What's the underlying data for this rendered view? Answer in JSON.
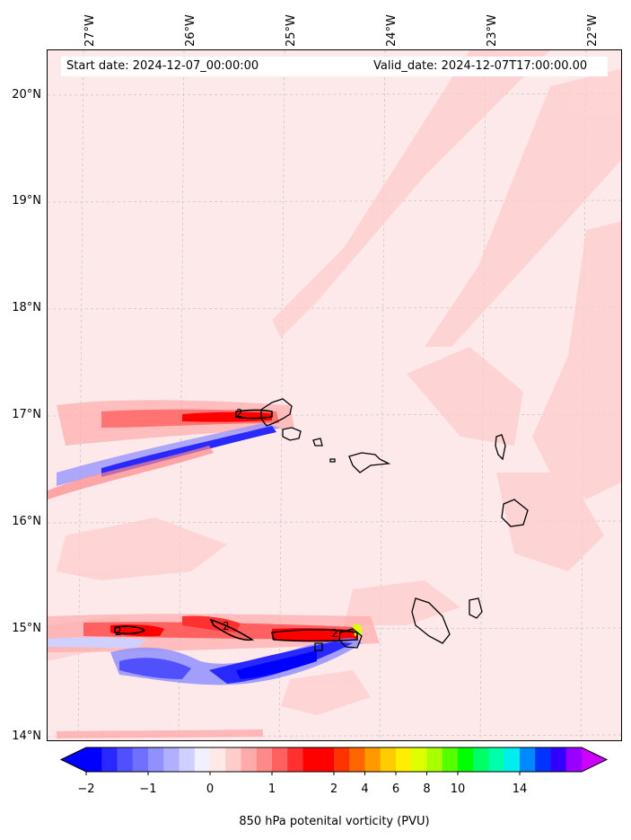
{
  "header": {
    "start_date": "Start date: 2024-12-07_00:00:00",
    "valid_date": "Valid_date: 2024-12-07T17:00:00.00"
  },
  "map": {
    "lon_labels": [
      "27°W",
      "26°W",
      "25°W",
      "24°W",
      "23°W",
      "22°W"
    ],
    "lat_labels": [
      "20°N",
      "19°N",
      "18°N",
      "17°N",
      "16°N",
      "15°N",
      "14°N"
    ],
    "contour_label": "2",
    "background_color": "#fde9ea"
  },
  "colorbar": {
    "tick_labels": [
      "−2",
      "−1",
      "0",
      "1",
      "2",
      "4",
      "6",
      "8",
      "10",
      "14"
    ],
    "label": "850 hPa potenital vorticity (PVU)",
    "colors": [
      "#0000ff",
      "#2828ff",
      "#5050ff",
      "#7070ff",
      "#9090ff",
      "#b0b0ff",
      "#d0d0ff",
      "#f0f0ff",
      "#ffe8e8",
      "#ffcccc",
      "#ffaaaa",
      "#ff8888",
      "#ff6060",
      "#ff3030",
      "#ff0000",
      "#ff0000",
      "#ff3300",
      "#ff6600",
      "#ff9900",
      "#ffcc00",
      "#ffee00",
      "#ddff00",
      "#aaff00",
      "#55ff00",
      "#00ff00",
      "#00ff66",
      "#00ffaa",
      "#00eeee",
      "#0088ff",
      "#0033ff",
      "#3300ff",
      "#9900ff"
    ],
    "extend_low_color": "#0000ff",
    "extend_high_color": "#cc00ff"
  }
}
